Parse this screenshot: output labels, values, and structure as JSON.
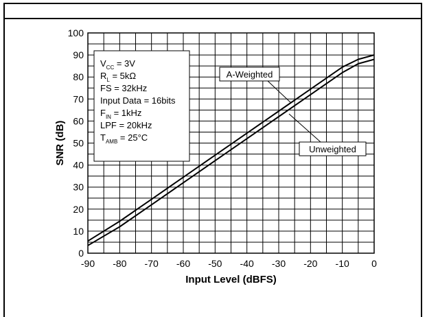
{
  "chart_data": {
    "type": "line",
    "xlabel": "Input Level (dBFS)",
    "ylabel": "SNR (dB)",
    "xlim": [
      -90,
      0
    ],
    "ylim": [
      0,
      100
    ],
    "xticks": [
      "-90",
      "-80",
      "-70",
      "-60",
      "-50",
      "-40",
      "-30",
      "-20",
      "-10",
      "0"
    ],
    "yticks": [
      "0",
      "10",
      "20",
      "30",
      "40",
      "50",
      "60",
      "70",
      "80",
      "90",
      "100"
    ],
    "grid": true,
    "series": [
      {
        "name": "A-Weighted",
        "x": [
          -90,
          -80,
          -70,
          -60,
          -50,
          -40,
          -30,
          -20,
          -10,
          -5,
          0
        ],
        "y": [
          5.5,
          14.5,
          24.5,
          34.5,
          44.5,
          54.5,
          64.5,
          74.5,
          84.5,
          88,
          90
        ]
      },
      {
        "name": "Unweighted",
        "x": [
          -90,
          -80,
          -70,
          -60,
          -50,
          -40,
          -30,
          -20,
          -10,
          -5,
          0
        ],
        "y": [
          3.5,
          12,
          22,
          32,
          42,
          52,
          62,
          72,
          82,
          86,
          88
        ]
      }
    ],
    "conditions": {
      "vcc": {
        "main": "V",
        "sub": "CC",
        "value": " = 3V"
      },
      "rl": {
        "main": "R",
        "sub": "L",
        "value": " = 5kΩ"
      },
      "fs": "FS = 32kHz",
      "input_data": "Input Data = 16bits",
      "fin": {
        "main": "F",
        "sub": "IN",
        "value": " = 1kHz"
      },
      "lpf": "LPF = 20kHz",
      "tamb": {
        "main": "T",
        "sub": "AMB",
        "value": " = 25°C"
      }
    }
  }
}
